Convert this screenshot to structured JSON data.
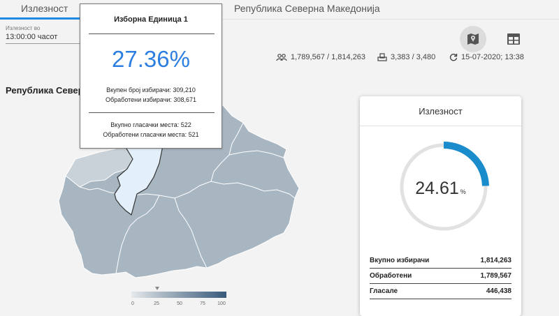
{
  "tabs": [
    {
      "label": "Излезност"
    },
    {
      "label": "Република Северна Македонија"
    }
  ],
  "filter": {
    "label": "Излезност во",
    "value": "13:00:00 часот"
  },
  "stats": {
    "voters": "1,789,567 / 1,814,263",
    "stations": "3,383 / 3,480",
    "updated": "15-07-2020; 13:38"
  },
  "map": {
    "title": "Република Северна Македонија",
    "legend_ticks": [
      "0",
      "25",
      "50",
      "75",
      "100"
    ],
    "colors": {
      "region": "#a8b6c2",
      "region_light": "#c9d2d9",
      "highlight": "#e3f0fb",
      "highlight_border": "#333333"
    }
  },
  "tooltip": {
    "title": "Изборна Единица 1",
    "turnout": "27.36%",
    "voters_total": "Вкупен број избирачи: 309,210",
    "voters_processed": "Обработени избирачи: 308,671",
    "stations_total": "Вкупно гласачки места: 522",
    "stations_processed": "Обработени гласачки места: 521"
  },
  "card": {
    "title": "Излезност",
    "turnout_value": "24.61",
    "turnout_unit": "%",
    "turnout_fraction": 0.2461,
    "accent_color": "#1a8ccc",
    "rows": [
      {
        "label": "Вкупно избирачи",
        "value": "1,814,263"
      },
      {
        "label": "Обработени",
        "value": "1,789,567"
      },
      {
        "label": "Гласале",
        "value": "446,438"
      }
    ]
  },
  "icons": [
    "map-icon",
    "table-icon",
    "people-icon",
    "ballot-box-icon",
    "refresh-icon"
  ]
}
